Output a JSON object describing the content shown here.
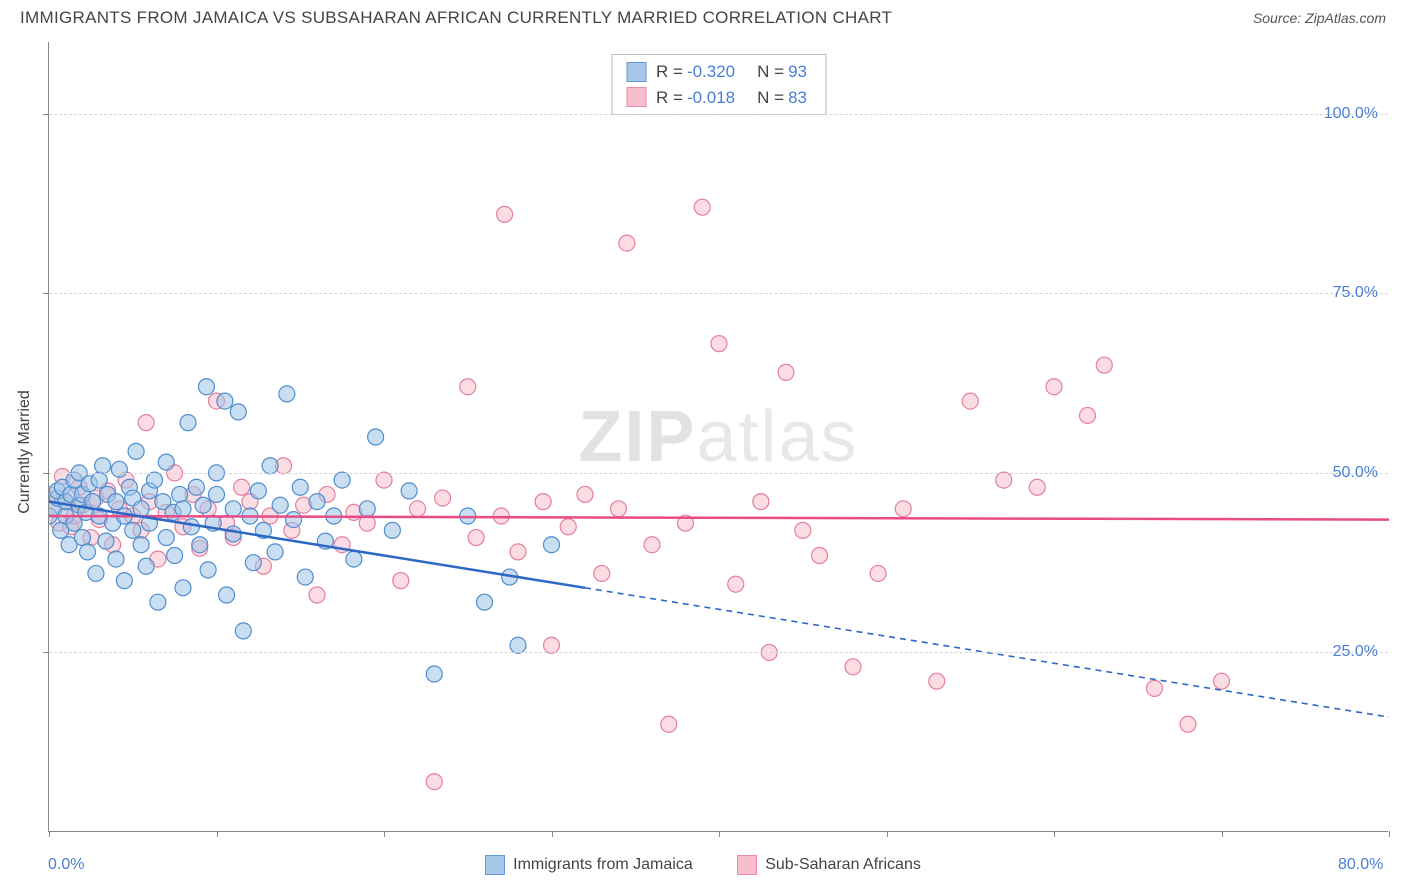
{
  "header": {
    "title": "IMMIGRANTS FROM JAMAICA VS SUBSAHARAN AFRICAN CURRENTLY MARRIED CORRELATION CHART",
    "source": "Source: ZipAtlas.com"
  },
  "chart": {
    "type": "scatter",
    "y_axis_label": "Currently Married",
    "xlim": [
      0,
      80
    ],
    "ylim": [
      0,
      110
    ],
    "x_ticks": [
      0,
      10,
      20,
      30,
      40,
      50,
      60,
      70,
      80
    ],
    "y_grid": [
      25,
      50,
      75,
      100
    ],
    "y_tick_labels": [
      "25.0%",
      "50.0%",
      "75.0%",
      "100.0%"
    ],
    "x_tick_labels": {
      "first": "0.0%",
      "last": "80.0%"
    },
    "background_color": "#ffffff",
    "grid_color": "#d5d5d5",
    "axis_color": "#888888",
    "tick_label_color": "#4a7fd4",
    "marker_radius": 8,
    "marker_stroke_width": 1.2,
    "trend_line_width": 2.5,
    "trend_dash": "6,5",
    "watermark": {
      "bold": "ZIP",
      "rest": "atlas"
    },
    "series": {
      "blue": {
        "label": "Immigrants from Jamaica",
        "fill": "#9ec3e8",
        "fill_opacity": 0.55,
        "stroke": "#4f8ecf",
        "line_color": "#2c68c4",
        "R": "-0.320",
        "N": "93",
        "trend": {
          "x1": 0,
          "y1": 46,
          "x2_solid": 32,
          "y2_solid": 34,
          "x2_dash": 80,
          "y2_dash": 16
        },
        "points": [
          [
            0,
            44
          ],
          [
            0.3,
            45
          ],
          [
            0.5,
            46.5
          ],
          [
            0.5,
            47.5
          ],
          [
            0.7,
            42
          ],
          [
            0.8,
            48
          ],
          [
            1,
            44
          ],
          [
            1,
            46
          ],
          [
            1.2,
            40
          ],
          [
            1.3,
            47
          ],
          [
            1.5,
            49
          ],
          [
            1.5,
            43
          ],
          [
            1.8,
            45.5
          ],
          [
            1.8,
            50
          ],
          [
            2,
            41
          ],
          [
            2,
            47
          ],
          [
            2.2,
            44.5
          ],
          [
            2.3,
            39
          ],
          [
            2.4,
            48.5
          ],
          [
            2.6,
            46
          ],
          [
            2.8,
            36
          ],
          [
            3,
            44
          ],
          [
            3,
            49
          ],
          [
            3.2,
            51
          ],
          [
            3.4,
            40.5
          ],
          [
            3.5,
            47
          ],
          [
            3.8,
            43
          ],
          [
            4,
            38
          ],
          [
            4,
            46
          ],
          [
            4.2,
            50.5
          ],
          [
            4.5,
            44
          ],
          [
            4.5,
            35
          ],
          [
            4.8,
            48
          ],
          [
            5,
            42
          ],
          [
            5,
            46.5
          ],
          [
            5.2,
            53
          ],
          [
            5.5,
            40
          ],
          [
            5.5,
            45
          ],
          [
            5.8,
            37
          ],
          [
            6,
            47.5
          ],
          [
            6,
            43
          ],
          [
            6.3,
            49
          ],
          [
            6.5,
            32
          ],
          [
            6.8,
            46
          ],
          [
            7,
            41
          ],
          [
            7,
            51.5
          ],
          [
            7.4,
            44.5
          ],
          [
            7.5,
            38.5
          ],
          [
            7.8,
            47
          ],
          [
            8,
            45
          ],
          [
            8,
            34
          ],
          [
            8.3,
            57
          ],
          [
            8.5,
            42.5
          ],
          [
            8.8,
            48
          ],
          [
            9,
            40
          ],
          [
            9.2,
            45.5
          ],
          [
            9.4,
            62
          ],
          [
            9.5,
            36.5
          ],
          [
            9.8,
            43
          ],
          [
            10,
            47
          ],
          [
            10,
            50
          ],
          [
            10.5,
            60
          ],
          [
            10.6,
            33
          ],
          [
            11,
            41.5
          ],
          [
            11,
            45
          ],
          [
            11.3,
            58.5
          ],
          [
            11.6,
            28
          ],
          [
            12,
            44
          ],
          [
            12.2,
            37.5
          ],
          [
            12.5,
            47.5
          ],
          [
            12.8,
            42
          ],
          [
            13.2,
            51
          ],
          [
            13.5,
            39
          ],
          [
            13.8,
            45.5
          ],
          [
            14.2,
            61
          ],
          [
            14.6,
            43.5
          ],
          [
            15,
            48
          ],
          [
            15.3,
            35.5
          ],
          [
            16,
            46
          ],
          [
            16.5,
            40.5
          ],
          [
            17,
            44
          ],
          [
            17.5,
            49
          ],
          [
            18.2,
            38
          ],
          [
            19,
            45
          ],
          [
            19.5,
            55
          ],
          [
            20.5,
            42
          ],
          [
            21.5,
            47.5
          ],
          [
            23,
            22
          ],
          [
            25,
            44
          ],
          [
            26,
            32
          ],
          [
            27.5,
            35.5
          ],
          [
            28,
            26
          ],
          [
            30,
            40
          ]
        ]
      },
      "pink": {
        "label": "Sub-Saharan Africans",
        "fill": "#f6b9c6",
        "fill_opacity": 0.5,
        "stroke": "#e57fa0",
        "line_color": "#e94b87",
        "R": "-0.018",
        "N": "83",
        "trend": {
          "x1": 0,
          "y1": 44,
          "x2": 80,
          "y2": 43.5
        },
        "points": [
          [
            0,
            47
          ],
          [
            0.3,
            45
          ],
          [
            0.6,
            43
          ],
          [
            0.8,
            49.5
          ],
          [
            1,
            46
          ],
          [
            1.3,
            42.5
          ],
          [
            1.5,
            44
          ],
          [
            1.8,
            48
          ],
          [
            2,
            45.5
          ],
          [
            2.5,
            41
          ],
          [
            2.8,
            46.5
          ],
          [
            3,
            43.5
          ],
          [
            3.5,
            47.5
          ],
          [
            3.8,
            40
          ],
          [
            4.2,
            45
          ],
          [
            4.6,
            49
          ],
          [
            5,
            44
          ],
          [
            5.5,
            42
          ],
          [
            5.8,
            57
          ],
          [
            6,
            46
          ],
          [
            6.5,
            38
          ],
          [
            7,
            44.5
          ],
          [
            7.5,
            50
          ],
          [
            8,
            42.5
          ],
          [
            8.6,
            47
          ],
          [
            9,
            39.5
          ],
          [
            9.5,
            45
          ],
          [
            10,
            60
          ],
          [
            10.6,
            43
          ],
          [
            11,
            41
          ],
          [
            11.5,
            48
          ],
          [
            12,
            46
          ],
          [
            12.8,
            37
          ],
          [
            13.2,
            44
          ],
          [
            14,
            51
          ],
          [
            14.5,
            42
          ],
          [
            15.2,
            45.5
          ],
          [
            16,
            33
          ],
          [
            16.6,
            47
          ],
          [
            17.5,
            40
          ],
          [
            18.2,
            44.5
          ],
          [
            19,
            43
          ],
          [
            20,
            49
          ],
          [
            21,
            35
          ],
          [
            22,
            45
          ],
          [
            23,
            7
          ],
          [
            23.5,
            46.5
          ],
          [
            25,
            62
          ],
          [
            25.5,
            41
          ],
          [
            27,
            44
          ],
          [
            27.2,
            86
          ],
          [
            28,
            39
          ],
          [
            29.5,
            46
          ],
          [
            30,
            26
          ],
          [
            31,
            42.5
          ],
          [
            32,
            47
          ],
          [
            33,
            36
          ],
          [
            34,
            45
          ],
          [
            34.5,
            82
          ],
          [
            36,
            40
          ],
          [
            37,
            15
          ],
          [
            38,
            43
          ],
          [
            39,
            87
          ],
          [
            40,
            68
          ],
          [
            41,
            34.5
          ],
          [
            42.5,
            46
          ],
          [
            43,
            25
          ],
          [
            44,
            64
          ],
          [
            45,
            42
          ],
          [
            46,
            38.5
          ],
          [
            48,
            23
          ],
          [
            49.5,
            36
          ],
          [
            51,
            45
          ],
          [
            53,
            21
          ],
          [
            55,
            60
          ],
          [
            57,
            49
          ],
          [
            59,
            48
          ],
          [
            60,
            62
          ],
          [
            62,
            58
          ],
          [
            63,
            65
          ],
          [
            66,
            20
          ],
          [
            68,
            15
          ],
          [
            70,
            21
          ]
        ]
      }
    }
  }
}
